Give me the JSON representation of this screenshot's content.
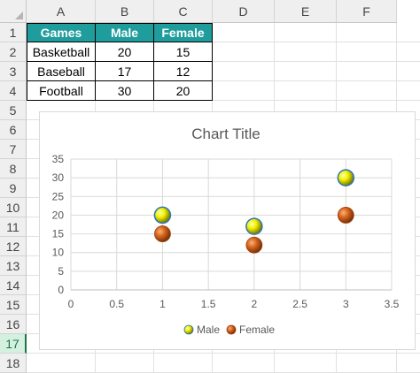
{
  "columns": [
    "A",
    "B",
    "C",
    "D",
    "E",
    "F"
  ],
  "rows": [
    "1",
    "2",
    "3",
    "4",
    "5",
    "6",
    "7",
    "8",
    "9",
    "10",
    "11",
    "12",
    "13",
    "14",
    "15",
    "16",
    "17",
    "18"
  ],
  "selected_row": "17",
  "table": {
    "headers": [
      "Games",
      "Male",
      "Female"
    ],
    "rows": [
      [
        "Basketball",
        "20",
        "15"
      ],
      [
        "Baseball",
        "17",
        "12"
      ],
      [
        "Football",
        "30",
        "20"
      ]
    ]
  },
  "colors": {
    "header_fill": "#1f9c9c",
    "male": "#f0f000",
    "female": "#d9661f"
  },
  "chart_data": {
    "type": "scatter",
    "title": "Chart Title",
    "xlim": [
      0,
      3.5
    ],
    "ylim": [
      0,
      35
    ],
    "x_ticks": [
      "0",
      "0.5",
      "1",
      "1.5",
      "2",
      "2.5",
      "3",
      "3.5"
    ],
    "y_ticks": [
      "0",
      "5",
      "10",
      "15",
      "20",
      "25",
      "30",
      "35"
    ],
    "grid": true,
    "legend_position": "bottom",
    "series": [
      {
        "name": "Male",
        "x": [
          1,
          2,
          3
        ],
        "y": [
          20,
          17,
          30
        ]
      },
      {
        "name": "Female",
        "x": [
          1,
          2,
          3
        ],
        "y": [
          15,
          12,
          20
        ]
      }
    ]
  }
}
